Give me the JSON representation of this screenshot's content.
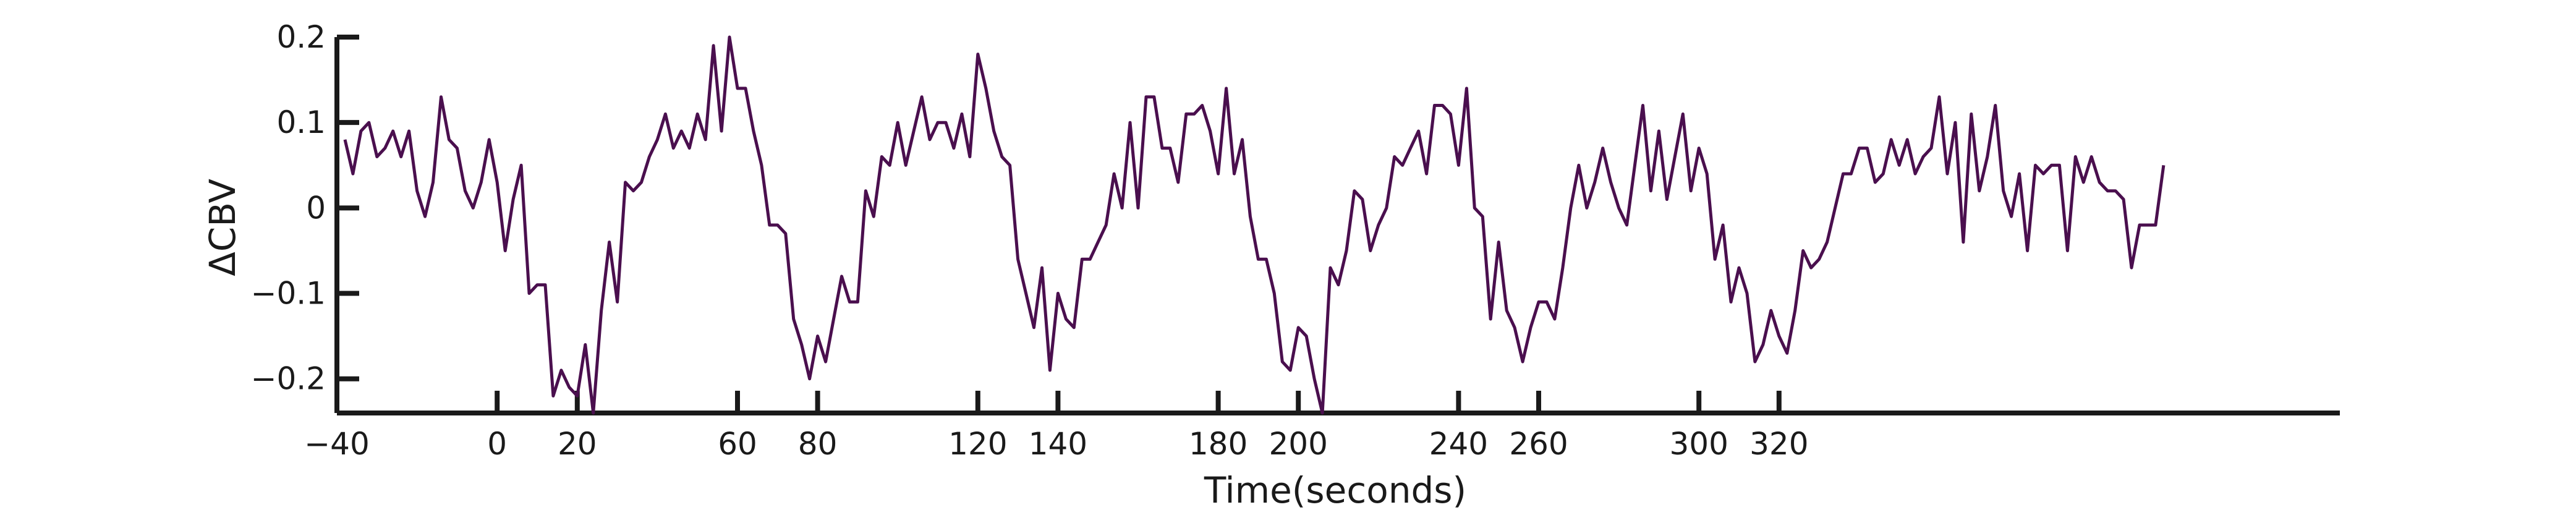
{
  "chart_data": {
    "type": "line",
    "title": "",
    "xlabel": "Time(seconds)",
    "ylabel": "ΔCBV",
    "xlim": [
      -40,
      460
    ],
    "ylim": [
      -0.24,
      0.2
    ],
    "x_ticks": [
      -40,
      0,
      20,
      60,
      80,
      120,
      140,
      180,
      200,
      240,
      260,
      300,
      320
    ],
    "y_ticks": [
      0.2,
      0.1,
      0,
      -0.1,
      -0.2
    ],
    "x_tick_labels": [
      "−40",
      "0",
      "20",
      "60",
      "80",
      "120",
      "140",
      "180",
      "200",
      "240",
      "260",
      "300",
      "320"
    ],
    "y_tick_labels": [
      "0.2",
      "0.1",
      "0",
      "−0.1",
      "−0.2"
    ],
    "grid": false,
    "legend": "none",
    "colors": {
      "line": "#4a0f4e",
      "axis": "#1a1a1a"
    },
    "series": [
      {
        "x_start": -38,
        "x_step": 2,
        "values": [
          0.08,
          0.04,
          0.09,
          0.1,
          0.06,
          0.07,
          0.09,
          0.06,
          0.09,
          0.02,
          -0.01,
          0.03,
          0.13,
          0.08,
          0.07,
          0.02,
          0.0,
          0.03,
          0.08,
          0.03,
          -0.05,
          0.01,
          0.05,
          -0.1,
          -0.09,
          -0.09,
          -0.22,
          -0.19,
          -0.21,
          -0.22,
          -0.16,
          -0.24,
          -0.12,
          -0.04,
          -0.11,
          0.03,
          0.02,
          0.03,
          0.06,
          0.08,
          0.11,
          0.07,
          0.09,
          0.07,
          0.11,
          0.08,
          0.19,
          0.09,
          0.2,
          0.14,
          0.14,
          0.09,
          0.05,
          -0.02,
          -0.02,
          -0.03,
          -0.13,
          -0.16,
          -0.2,
          -0.15,
          -0.18,
          -0.13,
          -0.08,
          -0.11,
          -0.11,
          0.02,
          -0.01,
          0.06,
          0.05,
          0.1,
          0.05,
          0.09,
          0.13,
          0.08,
          0.1,
          0.1,
          0.07,
          0.11,
          0.06,
          0.18,
          0.14,
          0.09,
          0.06,
          0.05,
          -0.06,
          -0.1,
          -0.14,
          -0.07,
          -0.19,
          -0.1,
          -0.13,
          -0.14,
          -0.06,
          -0.06,
          -0.04,
          -0.02,
          0.04,
          0.0,
          0.1,
          0.0,
          0.13,
          0.13,
          0.07,
          0.07,
          0.03,
          0.11,
          0.11,
          0.12,
          0.09,
          0.04,
          0.14,
          0.04,
          0.08,
          -0.01,
          -0.06,
          -0.06,
          -0.1,
          -0.18,
          -0.19,
          -0.14,
          -0.15,
          -0.2,
          -0.24,
          -0.07,
          -0.09,
          -0.05,
          0.02,
          0.01,
          -0.05,
          -0.02,
          0.0,
          0.06,
          0.05,
          0.07,
          0.09,
          0.04,
          0.12,
          0.12,
          0.11,
          0.05,
          0.14,
          0.0,
          -0.01,
          -0.13,
          -0.04,
          -0.12,
          -0.14,
          -0.18,
          -0.14,
          -0.11,
          -0.11,
          -0.13,
          -0.07,
          0.0,
          0.05,
          0.0,
          0.03,
          0.07,
          0.03,
          0.0,
          -0.02,
          0.05,
          0.12,
          0.02,
          0.09,
          0.01,
          0.06,
          0.11,
          0.02,
          0.07,
          0.04,
          -0.06,
          -0.02,
          -0.11,
          -0.07,
          -0.1,
          -0.18,
          -0.16,
          -0.12,
          -0.15,
          -0.17,
          -0.12,
          -0.05,
          -0.07,
          -0.06,
          -0.04,
          0.0,
          0.04,
          0.04,
          0.07,
          0.07,
          0.03,
          0.04,
          0.08,
          0.05,
          0.08,
          0.04,
          0.06,
          0.07,
          0.13,
          0.04,
          0.1,
          -0.04,
          0.11,
          0.02,
          0.06,
          0.12,
          0.02,
          -0.01,
          0.04,
          -0.05,
          0.05,
          0.04,
          0.05,
          0.05,
          -0.05,
          0.06,
          0.03,
          0.06,
          0.03,
          0.02,
          0.02,
          0.01,
          -0.07,
          -0.02,
          -0.02,
          -0.02,
          0.05
        ]
      }
    ]
  }
}
